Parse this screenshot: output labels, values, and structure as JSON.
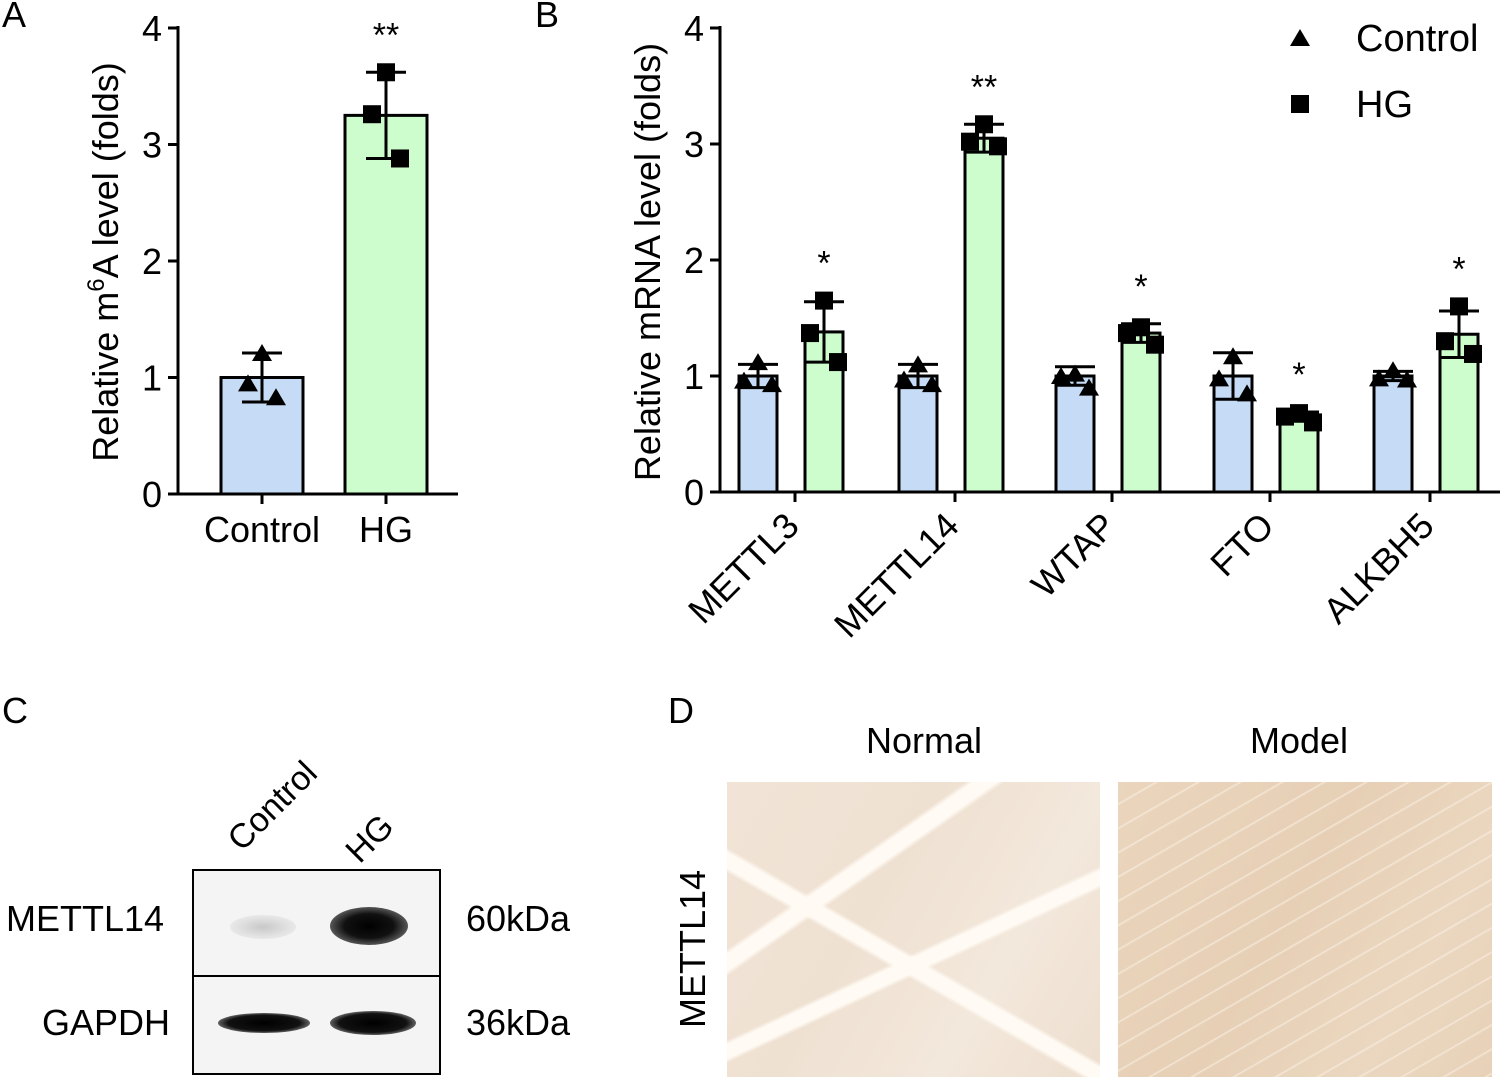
{
  "panels": {
    "a": {
      "letter": "A"
    },
    "b": {
      "letter": "B"
    },
    "c": {
      "letter": "C"
    },
    "d": {
      "letter": "D"
    }
  },
  "chart_data": [
    {
      "type": "bar",
      "panel": "A",
      "title": "",
      "xlabel": "",
      "ylabel_prefix": "Relative m",
      "ylabel_sup": "6",
      "ylabel_suffix": "A level (folds)",
      "ylim": [
        0,
        4
      ],
      "yticks": [
        "0",
        "1",
        "2",
        "3",
        "4"
      ],
      "categories": [
        "Control",
        "HG"
      ],
      "values": [
        1.0,
        3.25
      ],
      "error_sd": [
        0.21,
        0.37
      ],
      "points": [
        [
          1.21,
          0.83,
          0.95
        ],
        [
          3.62,
          3.26,
          2.88
        ]
      ],
      "markers": [
        "triangle",
        "square"
      ],
      "colors": [
        "#c6dbf5",
        "#cdfdcd"
      ],
      "significance": [
        "",
        "**"
      ]
    },
    {
      "type": "bar",
      "panel": "B",
      "title": "",
      "xlabel": "",
      "ylabel": "Relative mRNA level (folds)",
      "ylim": [
        0,
        4
      ],
      "yticks": [
        "0",
        "1",
        "2",
        "3",
        "4"
      ],
      "categories": [
        "METTL3",
        "METTL14",
        "WTAP",
        "FTO",
        "ALKBH5"
      ],
      "legend_position": "top-right",
      "series": [
        {
          "name": "Control",
          "marker": "triangle",
          "color": "#c6dbf5",
          "values": [
            1.0,
            1.0,
            1.0,
            1.0,
            1.0
          ],
          "error_sd": [
            0.1,
            0.1,
            0.08,
            0.2,
            0.04
          ],
          "points": [
            [
              1.12,
              0.93,
              0.96
            ],
            [
              1.1,
              0.93,
              0.97
            ],
            [
              1.02,
              0.9,
              1.0
            ],
            [
              1.17,
              0.85,
              0.98
            ],
            [
              1.05,
              0.97,
              0.98
            ]
          ]
        },
        {
          "name": "HG",
          "marker": "square",
          "color": "#cdfdcd",
          "values": [
            1.38,
            3.05,
            1.37,
            0.65,
            1.36
          ],
          "error_sd": [
            0.26,
            0.12,
            0.08,
            0.04,
            0.2
          ],
          "points": [
            [
              1.65,
              1.37,
              1.12
            ],
            [
              3.17,
              2.98,
              3.02
            ],
            [
              1.42,
              1.27,
              1.37
            ],
            [
              0.68,
              0.6,
              0.65
            ],
            [
              1.6,
              1.19,
              1.3
            ]
          ]
        }
      ],
      "significance": [
        "*",
        "**",
        "*",
        "*",
        "*"
      ]
    }
  ],
  "western_blot": {
    "lanes": [
      "Control",
      "HG"
    ],
    "rows": [
      {
        "protein": "METTL14",
        "size": "60kDa"
      },
      {
        "protein": "GAPDH",
        "size": "36kDa"
      }
    ]
  },
  "ihc": {
    "row_label": "METTL14",
    "columns": [
      "Normal",
      "Model"
    ]
  }
}
